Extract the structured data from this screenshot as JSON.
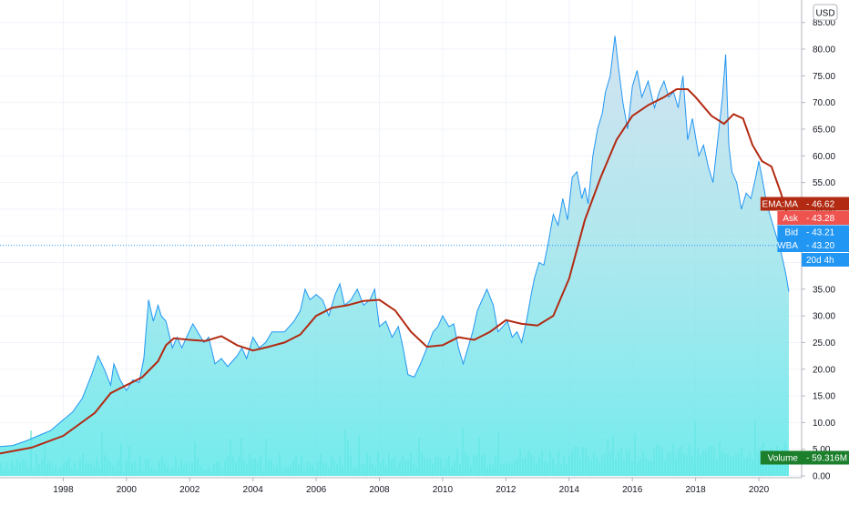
{
  "currency_label": "USD",
  "chart_data": {
    "type": "area",
    "symbol": "WBA",
    "y_axis": {
      "range": [
        0,
        87
      ],
      "ticks": [
        "0.00",
        "5.00",
        "10.00",
        "15.00",
        "20.00",
        "25.00",
        "30.00",
        "35.00",
        "40.00",
        "45.00",
        "50.00",
        "55.00",
        "60.00",
        "65.00",
        "70.00",
        "75.00",
        "80.00",
        "85.00"
      ],
      "tick_values": [
        0,
        5,
        10,
        15,
        20,
        25,
        30,
        35,
        40,
        45,
        50,
        55,
        60,
        65,
        70,
        75,
        80,
        85
      ],
      "side": "right"
    },
    "x_axis": {
      "range": [
        1996.0,
        2021.0
      ],
      "ticks": [
        "1998",
        "2000",
        "2002",
        "2004",
        "2006",
        "2008",
        "2010",
        "2012",
        "2014",
        "2016",
        "2018",
        "2020"
      ],
      "tick_values": [
        1998,
        2000,
        2002,
        2004,
        2006,
        2008,
        2010,
        2012,
        2014,
        2016,
        2018,
        2020
      ]
    },
    "grid": true,
    "series": [
      {
        "name": "WBA",
        "kind": "area",
        "color": "#2196f3",
        "fill_top": "#c9dced",
        "fill_bottom": "#6ae6ea",
        "points": [
          [
            1996.0,
            5.5
          ],
          [
            1996.4,
            5.7
          ],
          [
            1996.8,
            6.5
          ],
          [
            1997.2,
            7.5
          ],
          [
            1997.6,
            8.5
          ],
          [
            1998.0,
            10.5
          ],
          [
            1998.3,
            12
          ],
          [
            1998.6,
            14.5
          ],
          [
            1998.9,
            19
          ],
          [
            1999.1,
            22.5
          ],
          [
            1999.3,
            20
          ],
          [
            1999.5,
            17
          ],
          [
            1999.6,
            21
          ],
          [
            1999.8,
            18
          ],
          [
            2000.0,
            16
          ],
          [
            2000.2,
            18
          ],
          [
            2000.4,
            17.5
          ],
          [
            2000.55,
            22
          ],
          [
            2000.7,
            33
          ],
          [
            2000.85,
            29
          ],
          [
            2001.0,
            32
          ],
          [
            2001.1,
            30
          ],
          [
            2001.25,
            29
          ],
          [
            2001.45,
            24
          ],
          [
            2001.6,
            26
          ],
          [
            2001.75,
            24
          ],
          [
            2001.9,
            26
          ],
          [
            2002.1,
            28.5
          ],
          [
            2002.25,
            27
          ],
          [
            2002.45,
            25
          ],
          [
            2002.6,
            26
          ],
          [
            2002.8,
            21
          ],
          [
            2003.0,
            22
          ],
          [
            2003.2,
            20.5
          ],
          [
            2003.5,
            22.5
          ],
          [
            2003.65,
            24
          ],
          [
            2003.8,
            22
          ],
          [
            2004.0,
            26
          ],
          [
            2004.2,
            24
          ],
          [
            2004.4,
            25
          ],
          [
            2004.6,
            27
          ],
          [
            2004.8,
            27
          ],
          [
            2005.0,
            27
          ],
          [
            2005.3,
            29
          ],
          [
            2005.5,
            31
          ],
          [
            2005.65,
            35
          ],
          [
            2005.8,
            33
          ],
          [
            2006.0,
            34
          ],
          [
            2006.2,
            33
          ],
          [
            2006.4,
            30
          ],
          [
            2006.6,
            34
          ],
          [
            2006.75,
            36
          ],
          [
            2006.9,
            32
          ],
          [
            2007.1,
            33
          ],
          [
            2007.3,
            35
          ],
          [
            2007.5,
            32
          ],
          [
            2007.7,
            33
          ],
          [
            2007.85,
            35
          ],
          [
            2008.0,
            28
          ],
          [
            2008.2,
            29
          ],
          [
            2008.4,
            26
          ],
          [
            2008.6,
            28
          ],
          [
            2008.75,
            24
          ],
          [
            2008.9,
            19
          ],
          [
            2009.1,
            18.5
          ],
          [
            2009.3,
            21
          ],
          [
            2009.5,
            24
          ],
          [
            2009.7,
            27
          ],
          [
            2009.85,
            28
          ],
          [
            2010.0,
            30
          ],
          [
            2010.2,
            28
          ],
          [
            2010.35,
            28.5
          ],
          [
            2010.5,
            24
          ],
          [
            2010.65,
            21
          ],
          [
            2010.8,
            24
          ],
          [
            2010.95,
            27
          ],
          [
            2011.1,
            31
          ],
          [
            2011.25,
            33
          ],
          [
            2011.4,
            35
          ],
          [
            2011.6,
            32
          ],
          [
            2011.75,
            27
          ],
          [
            2011.9,
            28
          ],
          [
            2012.05,
            29
          ],
          [
            2012.2,
            26
          ],
          [
            2012.35,
            27
          ],
          [
            2012.5,
            25
          ],
          [
            2012.65,
            29
          ],
          [
            2012.8,
            34
          ],
          [
            2012.9,
            37
          ],
          [
            2013.05,
            40
          ],
          [
            2013.2,
            39.5
          ],
          [
            2013.35,
            44
          ],
          [
            2013.5,
            49
          ],
          [
            2013.65,
            47
          ],
          [
            2013.8,
            52
          ],
          [
            2013.95,
            48
          ],
          [
            2014.1,
            56
          ],
          [
            2014.25,
            57
          ],
          [
            2014.4,
            52
          ],
          [
            2014.5,
            54
          ],
          [
            2014.6,
            51
          ],
          [
            2014.75,
            60
          ],
          [
            2014.9,
            65
          ],
          [
            2015.05,
            68
          ],
          [
            2015.15,
            72
          ],
          [
            2015.3,
            75
          ],
          [
            2015.45,
            82.5
          ],
          [
            2015.55,
            77
          ],
          [
            2015.7,
            70
          ],
          [
            2015.85,
            65
          ],
          [
            2016.0,
            73
          ],
          [
            2016.15,
            76
          ],
          [
            2016.3,
            71
          ],
          [
            2016.5,
            74
          ],
          [
            2016.7,
            69
          ],
          [
            2016.85,
            72
          ],
          [
            2017.0,
            74
          ],
          [
            2017.15,
            71
          ],
          [
            2017.3,
            72
          ],
          [
            2017.45,
            69
          ],
          [
            2017.6,
            75
          ],
          [
            2017.75,
            63
          ],
          [
            2017.9,
            67
          ],
          [
            2018.1,
            60
          ],
          [
            2018.25,
            62
          ],
          [
            2018.4,
            58
          ],
          [
            2018.55,
            55
          ],
          [
            2018.7,
            63
          ],
          [
            2018.85,
            71
          ],
          [
            2018.95,
            79
          ],
          [
            2019.05,
            62
          ],
          [
            2019.15,
            57
          ],
          [
            2019.3,
            55
          ],
          [
            2019.45,
            50
          ],
          [
            2019.6,
            53
          ],
          [
            2019.75,
            52
          ],
          [
            2019.9,
            56
          ],
          [
            2020.0,
            59
          ],
          [
            2020.1,
            56
          ],
          [
            2020.25,
            51
          ],
          [
            2020.4,
            48
          ],
          [
            2020.55,
            45
          ],
          [
            2020.7,
            42
          ],
          [
            2020.85,
            38
          ],
          [
            2020.95,
            34.5
          ]
        ]
      },
      {
        "name": "EMA:MA",
        "kind": "line",
        "color": "#b22a12",
        "points": [
          [
            1996.0,
            4.2
          ],
          [
            1997.0,
            5.3
          ],
          [
            1998.0,
            7.5
          ],
          [
            1999.0,
            11.8
          ],
          [
            1999.5,
            15.5
          ],
          [
            2000.0,
            17
          ],
          [
            2000.5,
            18.5
          ],
          [
            2001.0,
            21.5
          ],
          [
            2001.25,
            24.5
          ],
          [
            2001.5,
            25.8
          ],
          [
            2002.0,
            25.5
          ],
          [
            2002.5,
            25.3
          ],
          [
            2003.0,
            26.2
          ],
          [
            2003.5,
            24.5
          ],
          [
            2004.0,
            23.5
          ],
          [
            2004.5,
            24.2
          ],
          [
            2005.0,
            25
          ],
          [
            2005.5,
            26.5
          ],
          [
            2006.0,
            30
          ],
          [
            2006.5,
            31.5
          ],
          [
            2007.0,
            32
          ],
          [
            2007.5,
            32.8
          ],
          [
            2008.0,
            33
          ],
          [
            2008.5,
            31
          ],
          [
            2009.0,
            27
          ],
          [
            2009.5,
            24.2
          ],
          [
            2010.0,
            24.5
          ],
          [
            2010.5,
            26
          ],
          [
            2011.0,
            25.5
          ],
          [
            2011.5,
            27
          ],
          [
            2012.0,
            29.2
          ],
          [
            2012.5,
            28.5
          ],
          [
            2013.0,
            28.2
          ],
          [
            2013.5,
            30
          ],
          [
            2014.0,
            37
          ],
          [
            2014.5,
            48
          ],
          [
            2015.0,
            56
          ],
          [
            2015.5,
            63
          ],
          [
            2016.0,
            67.5
          ],
          [
            2016.5,
            69.5
          ],
          [
            2017.0,
            71
          ],
          [
            2017.4,
            72.5
          ],
          [
            2017.75,
            72.5
          ],
          [
            2018.0,
            71
          ],
          [
            2018.5,
            67.5
          ],
          [
            2018.9,
            66
          ],
          [
            2019.2,
            67.8
          ],
          [
            2019.5,
            67
          ],
          [
            2019.8,
            62
          ],
          [
            2020.1,
            59
          ],
          [
            2020.4,
            58
          ],
          [
            2020.7,
            53
          ],
          [
            2020.95,
            48
          ]
        ]
      },
      {
        "name": "Volume",
        "kind": "histogram",
        "color": "#7fe8cf",
        "units": "millions",
        "range": [
          0,
          300
        ],
        "last_value": "59.316M"
      }
    ],
    "price_line": {
      "value": 43.2,
      "style": "dotted",
      "color": "#2196f3"
    },
    "value_labels": [
      {
        "name": "EMA:MA",
        "value": "46.62",
        "color": "#b22a12"
      },
      {
        "name": "Ask",
        "value": "43.28",
        "color": "#ef5350"
      },
      {
        "name": "Bid",
        "value": "43.21",
        "color": "#2196f3"
      },
      {
        "name": "WBA",
        "value": "43.20",
        "color": "#2196f3"
      },
      {
        "name": "",
        "value": "20d 4h",
        "color": "#2196f3"
      },
      {
        "name": "Volume",
        "value": "59.316M",
        "color": "#1b7f2c"
      }
    ]
  }
}
